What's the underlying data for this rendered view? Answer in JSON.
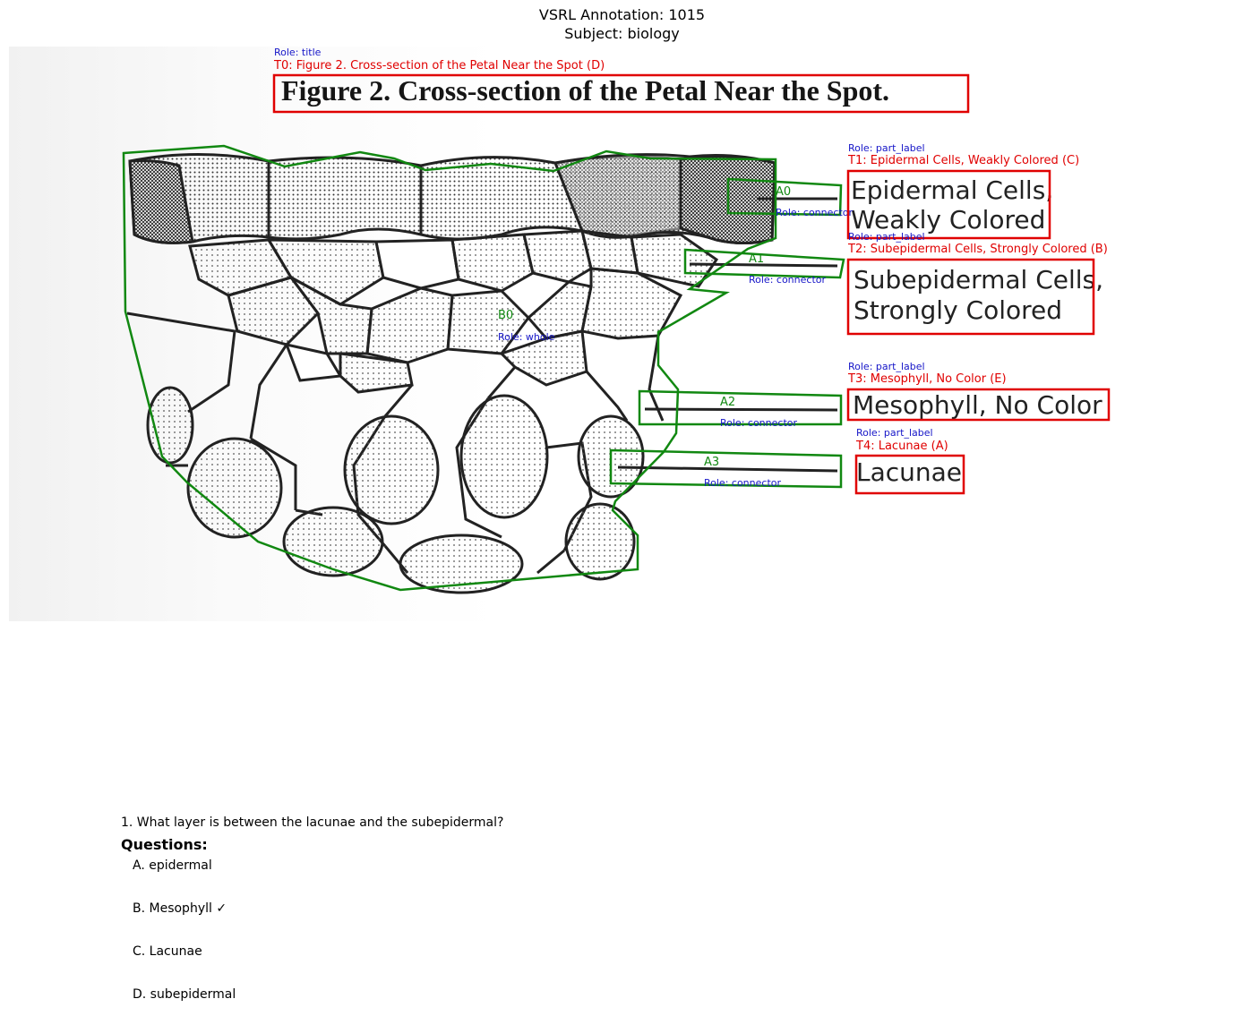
{
  "header": {
    "title": "VSRL Annotation: 1015",
    "subject": "Subject: biology"
  },
  "colors": {
    "text_box": "#e00000",
    "region_box": "#118811",
    "role": "#1515c8"
  },
  "scanned_labels": {
    "title": "Figure 2. Cross-section of the Petal Near the Spot.",
    "t1_line1": "Epidermal Cells,",
    "t1_line2": "Weakly Colored",
    "t2_line1": "Subepidermal Cells,",
    "t2_line2": "Strongly Colored",
    "t3": "Mesophyll, No Color",
    "t4": "Lacunae"
  },
  "text_annotations": [
    {
      "id": "T0",
      "role": "Role: title",
      "label": "T0: Figure 2. Cross-section of the Petal Near the Spot (D)"
    },
    {
      "id": "T1",
      "role": "Role: part_label",
      "label": "T1: Epidermal Cells, Weakly Colored (C)"
    },
    {
      "id": "T2",
      "role": "Role: part_label",
      "label": "T2: Subepidermal Cells, Strongly Colored (B)"
    },
    {
      "id": "T3",
      "role": "Role: part_label",
      "label": "T3: Mesophyll, No Color (E)"
    },
    {
      "id": "T4",
      "role": "Role: part_label",
      "label": "T4: Lacunae (A)"
    }
  ],
  "region_annotations": [
    {
      "id": "B0",
      "role": "Role: whole"
    },
    {
      "id": "A0",
      "role": "Role: connector"
    },
    {
      "id": "A1",
      "role": "Role: connector"
    },
    {
      "id": "A2",
      "role": "Role: connector"
    },
    {
      "id": "A3",
      "role": "Role: connector"
    }
  ],
  "questions": {
    "heading": "Questions:",
    "q1": "1. What layer is between the lacunae and the subepidermal?",
    "options": [
      "A. epidermal",
      "B. Mesophyll ✓",
      "C. Lacunae",
      "D. subepidermal"
    ]
  }
}
